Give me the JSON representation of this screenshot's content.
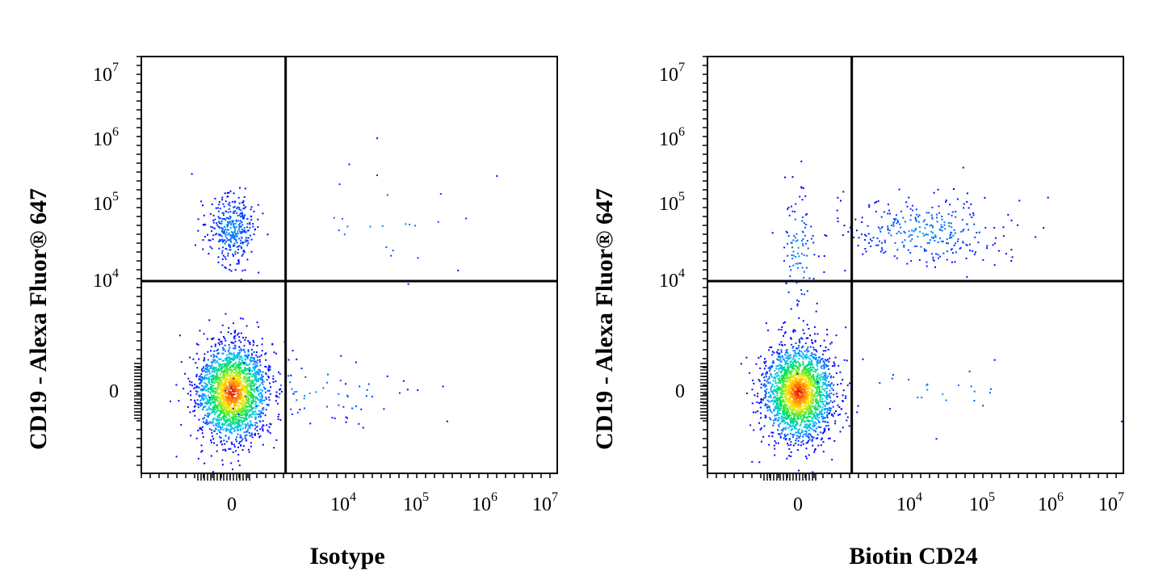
{
  "chart_data": [
    {
      "type": "scatter",
      "subtype": "flow-cytometry-density-dot-plot",
      "xlabel": "Isotype",
      "ylabel": "CD19 - Alexa Fluor® 647",
      "x_scale": "biexponential",
      "y_scale": "biexponential",
      "x_ticks": [
        "0",
        "10^4",
        "10^5",
        "10^6",
        "10^7"
      ],
      "y_ticks": [
        "0",
        "10^4",
        "10^5",
        "10^6",
        "10^7"
      ],
      "grid": false,
      "quadrant_gate": {
        "x": 2500,
        "y": 6000
      },
      "color_scale": "density (blue-green-yellow-red)",
      "populations": [
        {
          "name": "",
          "center_x": 0,
          "center_y": 0,
          "weight": 0.82,
          "quadrant": "lower-left"
        },
        {
          "name": "",
          "center_x": 0,
          "center_y": 33000,
          "weight": 0.14,
          "quadrant": "upper-left"
        },
        {
          "name": "",
          "center_x": 4000,
          "center_y": 0,
          "weight": 0.03,
          "quadrant": "lower-right"
        },
        {
          "name": "",
          "center_x": 40000,
          "center_y": 40000,
          "weight": 0.01,
          "quadrant": "upper-right"
        }
      ]
    },
    {
      "type": "scatter",
      "subtype": "flow-cytometry-density-dot-plot",
      "xlabel": "Biotin CD24",
      "ylabel": "CD19 - Alexa Fluor® 647",
      "x_scale": "biexponential",
      "y_scale": "biexponential",
      "x_ticks": [
        "0",
        "10^4",
        "10^5",
        "10^6",
        "10^7"
      ],
      "y_ticks": [
        "0",
        "10^4",
        "10^5",
        "10^6",
        "10^7"
      ],
      "grid": false,
      "quadrant_gate": {
        "x": 2500,
        "y": 6000
      },
      "color_scale": "density (blue-green-yellow-red)",
      "populations": [
        {
          "name": "",
          "center_x": 0,
          "center_y": 0,
          "weight": 0.83,
          "quadrant": "lower-left"
        },
        {
          "name": "",
          "center_x": 20000,
          "center_y": 30000,
          "weight": 0.12,
          "quadrant": "upper-right"
        },
        {
          "name": "",
          "center_x": 0,
          "center_y": 15000,
          "weight": 0.04,
          "quadrant": "upper-left"
        },
        {
          "name": "",
          "center_x": 30000,
          "center_y": 0,
          "weight": 0.01,
          "quadrant": "lower-right"
        }
      ]
    }
  ]
}
